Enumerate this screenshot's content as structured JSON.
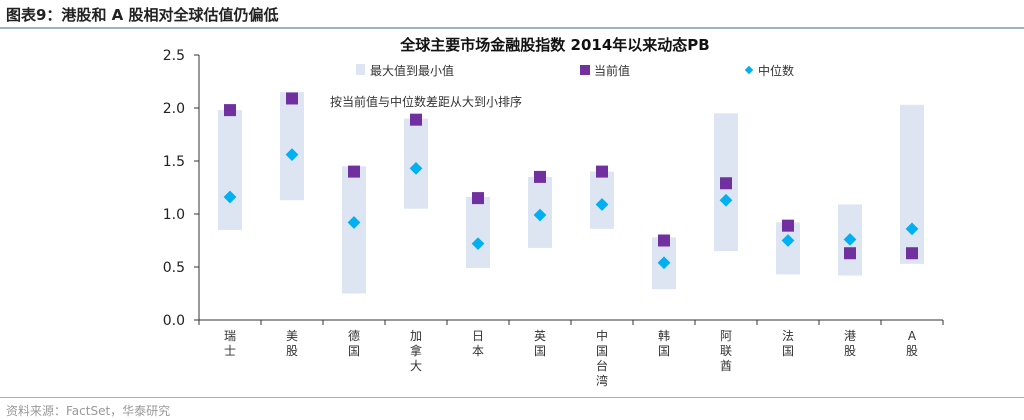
{
  "figure_title": "图表9：港股和 A 股相对全球估值仍偏低",
  "source": "资料来源：FactSet，华泰研究",
  "chart_data": {
    "type": "range-bar with markers",
    "title": "全球主要市场金融股指数 2014年以来动态PB",
    "annotation": "按当前值与中位数差距从大到小排序",
    "legend": [
      "最大值到最小值",
      "当前值",
      "中位数"
    ],
    "legend_position": "top",
    "colors": {
      "range": "#dde4f2",
      "current": "#7030a0",
      "median": "#00b0f0"
    },
    "ylim": [
      0,
      2.5
    ],
    "yticks": [
      "0.0",
      "0.5",
      "1.0",
      "1.5",
      "2.0",
      "2.5"
    ],
    "grid": false,
    "categories": [
      "瑞士",
      "美股",
      "德国",
      "加拿大",
      "日本",
      "英国",
      "中国台湾",
      "韩国",
      "阿联酋",
      "法国",
      "港股",
      "A股"
    ],
    "series": [
      {
        "name": "最大值到最小值",
        "max": [
          1.98,
          2.15,
          1.45,
          1.9,
          1.16,
          1.35,
          1.4,
          0.78,
          1.95,
          0.92,
          1.09,
          2.03
        ],
        "min": [
          0.85,
          1.13,
          0.25,
          1.05,
          0.49,
          0.68,
          0.86,
          0.29,
          0.65,
          0.43,
          0.42,
          0.53
        ]
      },
      {
        "name": "当前值",
        "values": [
          1.98,
          2.09,
          1.4,
          1.89,
          1.15,
          1.35,
          1.4,
          0.75,
          1.29,
          0.89,
          0.63,
          0.63
        ]
      },
      {
        "name": "中位数",
        "values": [
          1.16,
          1.56,
          0.92,
          1.43,
          0.72,
          0.99,
          1.09,
          0.54,
          1.13,
          0.75,
          0.76,
          0.86
        ]
      }
    ]
  }
}
